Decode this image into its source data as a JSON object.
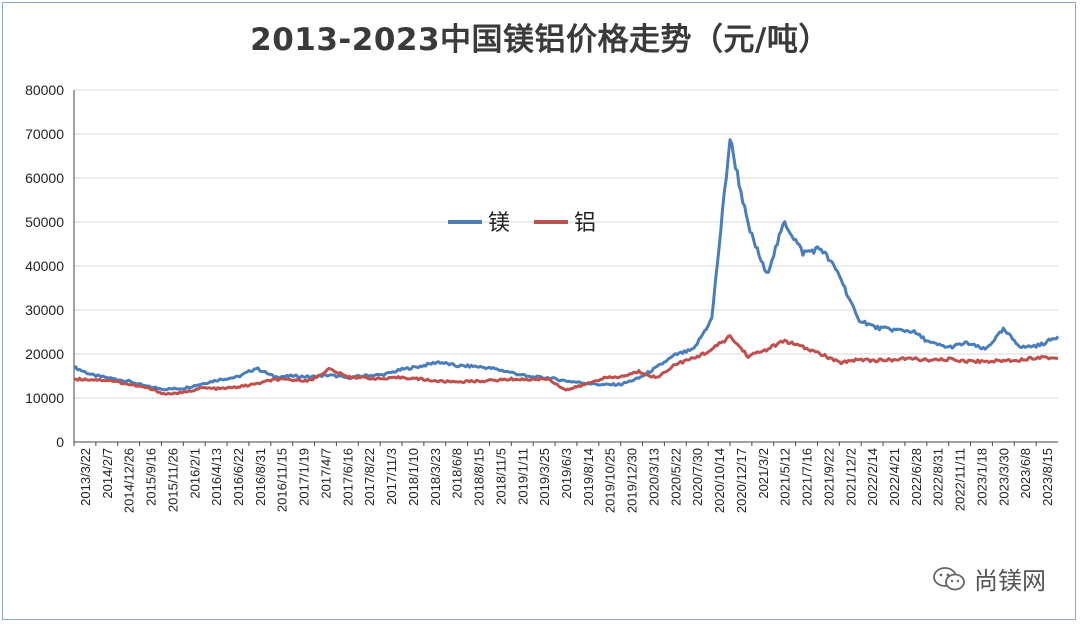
{
  "chart_data": {
    "type": "line",
    "title": "2013-2023中国镁铝价格走势（元/吨）",
    "ylim": [
      0,
      80000
    ],
    "yticks": [
      0,
      10000,
      20000,
      30000,
      40000,
      50000,
      60000,
      70000,
      80000
    ],
    "grid": "horizontal",
    "legend_position": "center-right",
    "xticks": [
      "2013/3/22",
      "2014/2/7",
      "2014/12/26",
      "2015/9/16",
      "2015/11/26",
      "2016/2/1",
      "2016/4/13",
      "2016/6/22",
      "2016/8/31",
      "2016/11/15",
      "2017/1/19",
      "2017/4/7",
      "2017/6/16",
      "2017/8/22",
      "2017/11/3",
      "2018/1/10",
      "2018/3/23",
      "2018/6/8",
      "2018/8/15",
      "2018/11/5",
      "2019/1/11",
      "2019/3/25",
      "2019/6/3",
      "2019/8/14",
      "2019/10/25",
      "2019/12/30",
      "2020/3/13",
      "2020/5/22",
      "2020/7/30",
      "2020/10/14",
      "2020/12/17",
      "2021/3/2",
      "2021/5/12",
      "2021/7/16",
      "2021/9/22",
      "2021/12/2",
      "2022/2/14",
      "2022/4/21",
      "2022/6/28",
      "2022/8/31",
      "2022/11/11",
      "2023/1/18",
      "2023/3/30",
      "2023/6/8",
      "2023/8/15"
    ],
    "series": [
      {
        "name": "镁",
        "color": "#4a7ebb",
        "values": [
          17000,
          15200,
          14500,
          13800,
          12600,
          12000,
          12200,
          13200,
          14200,
          14800,
          16800,
          14800,
          15000,
          14800,
          15200,
          14600,
          15100,
          15300,
          16500,
          17200,
          18200,
          17300,
          17200,
          16700,
          15800,
          14800,
          14600,
          13900,
          13400,
          13000,
          13100,
          14500,
          17000,
          19800,
          21000,
          28000,
          69000,
          49000,
          38000,
          50000,
          43000,
          44000,
          38000,
          28000,
          26000,
          25500,
          25200,
          22500,
          21500,
          22500,
          21000,
          25500,
          21500,
          22000,
          24000
        ]
      },
      {
        "name": "铝",
        "color": "#c0504d",
        "values": [
          14300,
          14200,
          14000,
          13100,
          12300,
          10900,
          11200,
          12300,
          12100,
          12500,
          13200,
          14200,
          14100,
          14000,
          16600,
          14800,
          14600,
          14300,
          14700,
          14300,
          13800,
          13700,
          13800,
          14000,
          14300,
          14200,
          14400,
          11800,
          13000,
          14500,
          14800,
          16000,
          14600,
          17700,
          19000,
          21000,
          24000,
          19500,
          21000,
          23000,
          21500,
          20000,
          18000,
          18800,
          18500,
          18700,
          19000,
          18500,
          18800,
          18400,
          18300,
          18500,
          18700,
          19300,
          19000
        ]
      }
    ]
  },
  "watermark": {
    "text": "尚镁网",
    "icon": "wechat-icon"
  }
}
